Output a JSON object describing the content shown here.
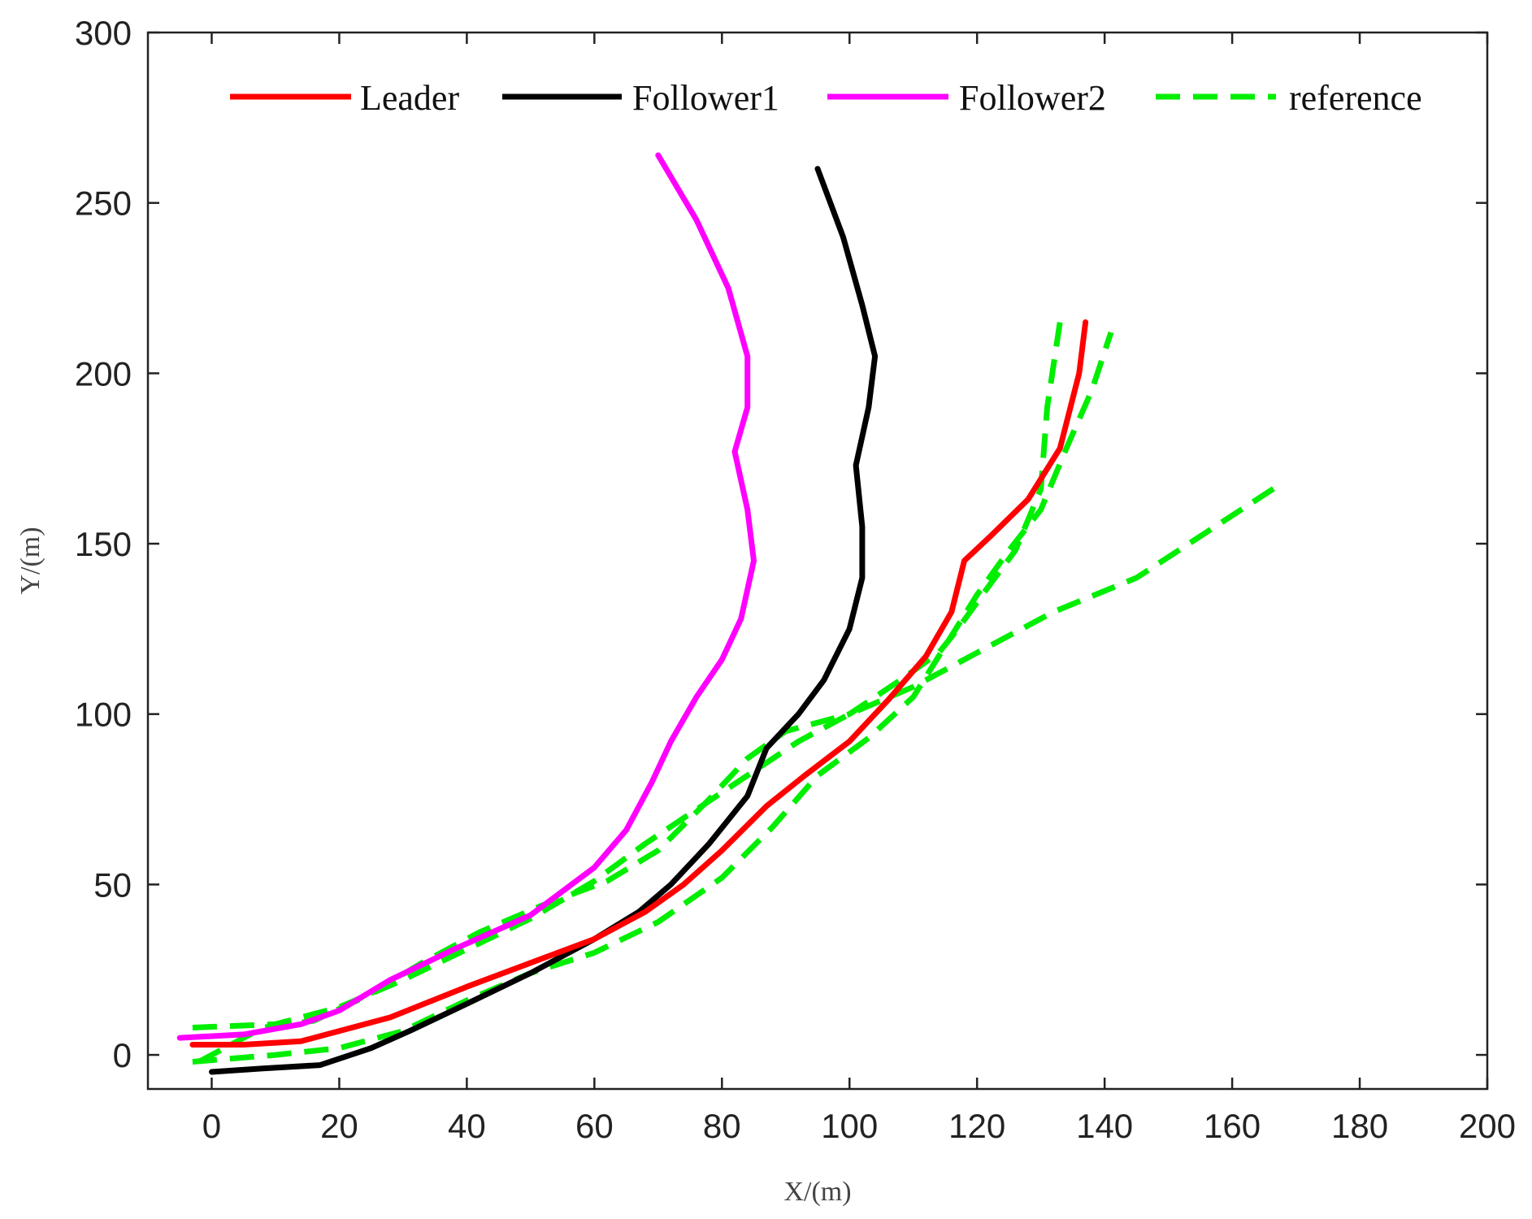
{
  "chart_data": {
    "type": "line",
    "xlabel": "X/(m)",
    "ylabel": "Y/(m)",
    "xlim": [
      -10,
      200
    ],
    "ylim": [
      -10,
      300
    ],
    "xticks": [
      0,
      20,
      40,
      60,
      80,
      100,
      120,
      140,
      160,
      180,
      200
    ],
    "yticks": [
      0,
      50,
      100,
      150,
      200,
      250,
      300
    ],
    "grid": false,
    "legend_position": "top, horizontal",
    "series": [
      {
        "name": "Leader",
        "color": "#ff0000",
        "style": "solid",
        "points": [
          [
            -3,
            3
          ],
          [
            5,
            3
          ],
          [
            14,
            4
          ],
          [
            28,
            11
          ],
          [
            40,
            20
          ],
          [
            50,
            27
          ],
          [
            60,
            34
          ],
          [
            68,
            42
          ],
          [
            74,
            50
          ],
          [
            80,
            60
          ],
          [
            87,
            73
          ],
          [
            93,
            82
          ],
          [
            100,
            92
          ],
          [
            106,
            104
          ],
          [
            112,
            117
          ],
          [
            116,
            130
          ],
          [
            118,
            145
          ],
          [
            122,
            152
          ],
          [
            128,
            163
          ],
          [
            133,
            178
          ],
          [
            136,
            200
          ],
          [
            137,
            215
          ]
        ]
      },
      {
        "name": "Follower1",
        "color": "#000000",
        "style": "solid",
        "points": [
          [
            0,
            -5
          ],
          [
            8,
            -4
          ],
          [
            17,
            -3
          ],
          [
            25,
            2
          ],
          [
            31,
            7
          ],
          [
            40,
            15
          ],
          [
            50,
            24
          ],
          [
            60,
            34
          ],
          [
            67,
            42
          ],
          [
            72,
            50
          ],
          [
            78,
            62
          ],
          [
            84,
            76
          ],
          [
            87,
            90
          ],
          [
            92,
            100
          ],
          [
            96,
            110
          ],
          [
            100,
            125
          ],
          [
            102,
            140
          ],
          [
            102,
            155
          ],
          [
            101,
            173
          ],
          [
            103,
            190
          ],
          [
            104,
            205
          ],
          [
            102,
            220
          ],
          [
            99,
            240
          ],
          [
            95,
            260
          ]
        ]
      },
      {
        "name": "Follower2",
        "color": "#ff00ff",
        "style": "solid",
        "points": [
          [
            -5,
            5
          ],
          [
            5,
            6
          ],
          [
            14,
            9
          ],
          [
            20,
            13
          ],
          [
            28,
            22
          ],
          [
            38,
            31
          ],
          [
            50,
            41
          ],
          [
            60,
            55
          ],
          [
            65,
            66
          ],
          [
            69,
            80
          ],
          [
            72,
            92
          ],
          [
            76,
            105
          ],
          [
            80,
            116
          ],
          [
            83,
            128
          ],
          [
            85,
            145
          ],
          [
            84,
            160
          ],
          [
            82,
            177
          ],
          [
            84,
            190
          ],
          [
            84,
            205
          ],
          [
            81,
            225
          ],
          [
            76,
            245
          ],
          [
            70,
            264
          ]
        ]
      },
      {
        "name": "reference",
        "color": "#00ee00",
        "style": "dashed",
        "segments": [
          [
            [
              -3,
              8
            ],
            [
              10,
              9
            ],
            [
              20,
              14
            ],
            [
              30,
              22
            ],
            [
              40,
              31
            ],
            [
              50,
              40
            ],
            [
              60,
              51
            ],
            [
              68,
              62
            ],
            [
              76,
              72
            ],
            [
              84,
              82
            ],
            [
              92,
              92
            ],
            [
              100,
              100
            ],
            [
              110,
              108
            ],
            [
              120,
              118
            ],
            [
              132,
              130
            ],
            [
              145,
              140
            ],
            [
              168,
              168
            ]
          ],
          [
            [
              -3,
              -2
            ],
            [
              10,
              0
            ],
            [
              20,
              2
            ],
            [
              30,
              7
            ],
            [
              40,
              16
            ],
            [
              50,
              24
            ],
            [
              60,
              30
            ],
            [
              70,
              39
            ],
            [
              80,
              52
            ],
            [
              88,
              67
            ],
            [
              95,
              82
            ],
            [
              103,
              93
            ],
            [
              110,
              105
            ],
            [
              115,
              120
            ],
            [
              120,
              135
            ],
            [
              125,
              148
            ],
            [
              130,
              160
            ],
            [
              134,
              178
            ],
            [
              138,
              195
            ],
            [
              141,
              212
            ]
          ],
          [
            [
              -2,
              -2
            ],
            [
              8,
              8
            ],
            [
              16,
              10
            ],
            [
              24,
              17
            ],
            [
              33,
              27
            ],
            [
              42,
              36
            ],
            [
              52,
              44
            ],
            [
              62,
              51
            ],
            [
              70,
              60
            ],
            [
              78,
              75
            ],
            [
              84,
              87
            ],
            [
              90,
              95
            ],
            [
              100,
              100
            ],
            [
              108,
              110
            ],
            [
              114,
              118
            ],
            [
              117,
              125
            ],
            [
              122,
              138
            ],
            [
              126,
              148
            ],
            [
              130,
              166
            ],
            [
              131,
              190
            ],
            [
              133,
              215
            ]
          ]
        ]
      }
    ]
  }
}
